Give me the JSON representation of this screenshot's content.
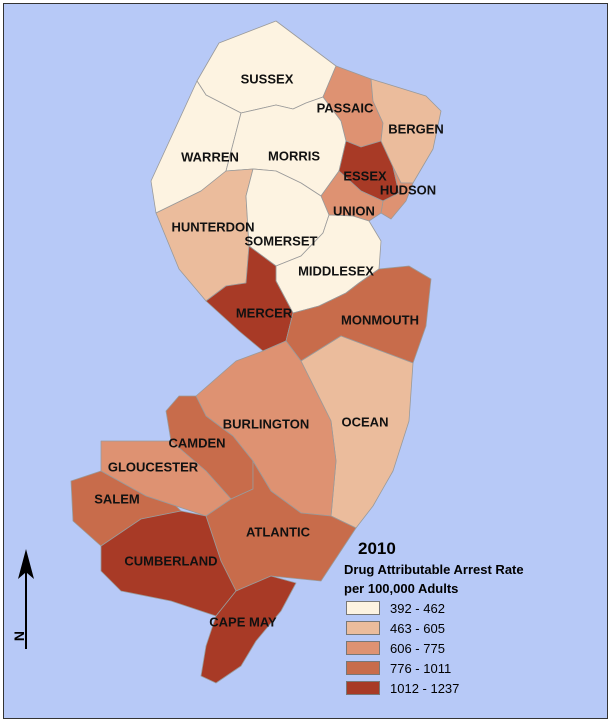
{
  "legend": {
    "year": "2010",
    "title_line1": "Drug Attributable Arrest Rate",
    "title_line2": "per 100,000 Adults",
    "classes": [
      {
        "label": "392 - 462",
        "color": "#fdf3e1"
      },
      {
        "label": "463 - 605",
        "color": "#ebbc9c"
      },
      {
        "label": "606 - 775",
        "color": "#de9272"
      },
      {
        "label": "776 - 1011",
        "color": "#c86c4b"
      },
      {
        "label": "1012 - 1237",
        "color": "#a83a26"
      }
    ]
  },
  "north_arrow": {
    "letter": "N",
    "icon": "north-arrow-icon"
  },
  "counties": {
    "sussex": {
      "label": "SUSSEX",
      "class": 0
    },
    "passaic": {
      "label": "PASSAIC",
      "class": 2
    },
    "bergen": {
      "label": "BERGEN",
      "class": 1
    },
    "warren": {
      "label": "WARREN",
      "class": 0
    },
    "morris": {
      "label": "MORRIS",
      "class": 0
    },
    "essex": {
      "label": "ESSEX",
      "class": 4
    },
    "hudson": {
      "label": "HUDSON",
      "class": 2
    },
    "union": {
      "label": "UNION",
      "class": 2
    },
    "hunterdon": {
      "label": "HUNTERDON",
      "class": 1
    },
    "somerset": {
      "label": "SOMERSET",
      "class": 0
    },
    "middlesex": {
      "label": "MIDDLESEX",
      "class": 0
    },
    "mercer": {
      "label": "MERCER",
      "class": 4
    },
    "monmouth": {
      "label": "MONMOUTH",
      "class": 3
    },
    "ocean": {
      "label": "OCEAN",
      "class": 1
    },
    "burlington": {
      "label": "BURLINGTON",
      "class": 2
    },
    "camden": {
      "label": "CAMDEN",
      "class": 3
    },
    "gloucester": {
      "label": "GLOUCESTER",
      "class": 2
    },
    "salem": {
      "label": "SALEM",
      "class": 3
    },
    "atlantic": {
      "label": "ATLANTIC",
      "class": 3
    },
    "cumberland": {
      "label": "CUMBERLAND",
      "class": 4
    },
    "cape_may": {
      "label": "CAPE MAY",
      "class": 4
    }
  }
}
